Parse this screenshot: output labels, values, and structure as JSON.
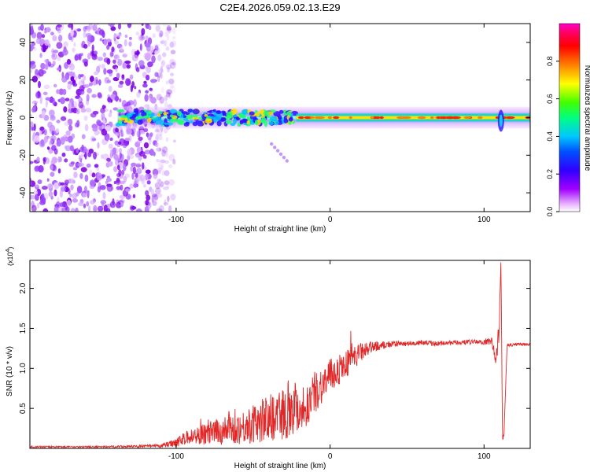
{
  "title": "C2E4.2026.059.02.13.E29",
  "chart_data": [
    {
      "type": "heatmap",
      "name": "spectrogram",
      "xlabel": "Height of straight line (km)",
      "ylabel": "Frequency (Hz)",
      "xlim": [
        -195,
        130
      ],
      "ylim": [
        -50,
        50
      ],
      "xticks": [
        -100,
        0,
        100
      ],
      "yticks": [
        -40,
        -20,
        0,
        20,
        40
      ],
      "grid": false,
      "colorbar": {
        "label": "Normalized spectral amplitude",
        "range": [
          0,
          1
        ],
        "ticks": [
          "0.0",
          "0.2",
          "0.4",
          "0.6",
          "0.8"
        ],
        "colormap": [
          "#ffffff",
          "#e8b4ff",
          "#a000ff",
          "#3000ff",
          "#0050ff",
          "#00c8ff",
          "#00ff80",
          "#40ff00",
          "#ffff00",
          "#ff8000",
          "#ff0000",
          "#ff0060",
          "#ff00c8"
        ]
      },
      "features": {
        "noise_region_x": [
          -195,
          -105
        ],
        "signal_freq": 0,
        "signal_start_x": -138,
        "signal_strong_start_x": -22,
        "spike_x": 111,
        "detached_blob": {
          "x_start": -38,
          "x_end": -28,
          "freq_start": -14,
          "freq_end": -23
        }
      }
    },
    {
      "type": "line",
      "name": "snr",
      "xlabel": "Height of straight line (km)",
      "ylabel": "SNR (10 * v/v)",
      "scale_label": "(x10",
      "scale_exponent": "4",
      "xlim": [
        -195,
        130
      ],
      "ylim": [
        0,
        2.35
      ],
      "xticks": [
        -100,
        0,
        100
      ],
      "yticks": [
        "0.5",
        "1.0",
        "1.5",
        "2.0"
      ],
      "grid": false,
      "series": [
        {
          "name": "SNR",
          "color": "#e02828",
          "x": [
            -195,
            -150,
            -110,
            -100,
            -90,
            -80,
            -70,
            -60,
            -50,
            -40,
            -30,
            -25,
            -20,
            -15,
            -10,
            -5,
            0,
            10,
            20,
            30,
            40,
            50,
            60,
            70,
            80,
            90,
            100,
            105,
            108,
            110,
            111,
            112,
            113,
            115,
            120,
            130
          ],
          "y": [
            0.02,
            0.02,
            0.03,
            0.08,
            0.15,
            0.18,
            0.22,
            0.25,
            0.3,
            0.38,
            0.45,
            0.55,
            0.5,
            0.52,
            0.7,
            0.8,
            0.9,
            1.05,
            1.2,
            1.28,
            1.3,
            1.31,
            1.32,
            1.31,
            1.32,
            1.33,
            1.33,
            1.34,
            1.1,
            1.6,
            2.35,
            0.1,
            0.2,
            1.29,
            1.3,
            1.3
          ],
          "noise": [
            0.01,
            0.01,
            0.02,
            0.06,
            0.1,
            0.14,
            0.18,
            0.2,
            0.24,
            0.3,
            0.34,
            0.4,
            0.3,
            0.26,
            0.26,
            0.24,
            0.22,
            0.18,
            0.12,
            0.06,
            0.04,
            0.03,
            0.03,
            0.03,
            0.03,
            0.03,
            0.03,
            0.05,
            0.1,
            0.2,
            0.0,
            0.0,
            0.05,
            0.02,
            0.02,
            0.02
          ]
        }
      ]
    }
  ]
}
